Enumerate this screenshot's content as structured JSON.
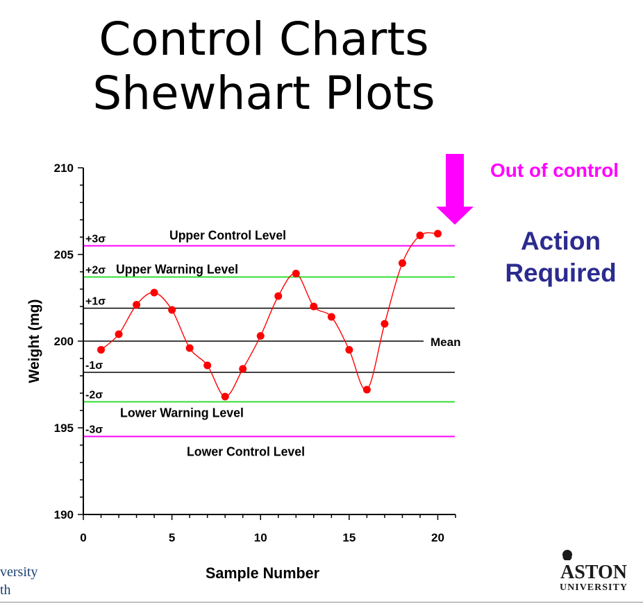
{
  "slide": {
    "title_line1": "Control Charts",
    "title_line2": "Shewhart Plots",
    "callout_out_of_control": "Out of control",
    "callout_action_line1": "Action",
    "callout_action_line2": "Required",
    "university_left_line1": "versity",
    "university_left_line2": "th",
    "logo_text_line1": "ASTON",
    "logo_text_line2": "UNIVERSITY"
  },
  "colors": {
    "series": "#ff0000",
    "control": "#ff00ff",
    "warning": "#33dd33",
    "sigma": "#000000",
    "arrow": "#ff00ff",
    "action": "#2b2b8f"
  },
  "chart_data": {
    "type": "line",
    "xlabel": "Sample Number",
    "ylabel": "Weight (mg)",
    "xlim": [
      0,
      21
    ],
    "ylim": [
      190,
      210
    ],
    "x_ticks": [
      0,
      5,
      10,
      15,
      20
    ],
    "y_ticks": [
      190,
      195,
      200,
      205,
      210
    ],
    "x": [
      1,
      2,
      3,
      4,
      5,
      6,
      7,
      8,
      9,
      10,
      11,
      12,
      13,
      14,
      15,
      16,
      17,
      18,
      19,
      20
    ],
    "values": [
      199.5,
      200.4,
      202.1,
      202.8,
      201.8,
      199.6,
      198.6,
      196.8,
      198.4,
      200.3,
      202.6,
      203.9,
      202.0,
      201.4,
      199.5,
      197.2,
      201.0,
      204.5,
      206.1,
      206.2
    ],
    "reference_lines": [
      {
        "sigma_label": "+3σ",
        "y": 205.5,
        "kind": "control",
        "text": "Upper Control Level"
      },
      {
        "sigma_label": "+2σ",
        "y": 203.7,
        "kind": "warning",
        "text": "Upper Warning Level"
      },
      {
        "sigma_label": "+1σ",
        "y": 201.9,
        "kind": "sigma",
        "text": ""
      },
      {
        "sigma_label": "",
        "y": 200.0,
        "kind": "mean",
        "text": "Mean"
      },
      {
        "sigma_label": "-1σ",
        "y": 198.2,
        "kind": "sigma",
        "text": ""
      },
      {
        "sigma_label": "-2σ",
        "y": 196.5,
        "kind": "warning",
        "text": "Lower Warning Level"
      },
      {
        "sigma_label": "-3σ",
        "y": 194.5,
        "kind": "control",
        "text": "Lower Control Level"
      }
    ]
  }
}
